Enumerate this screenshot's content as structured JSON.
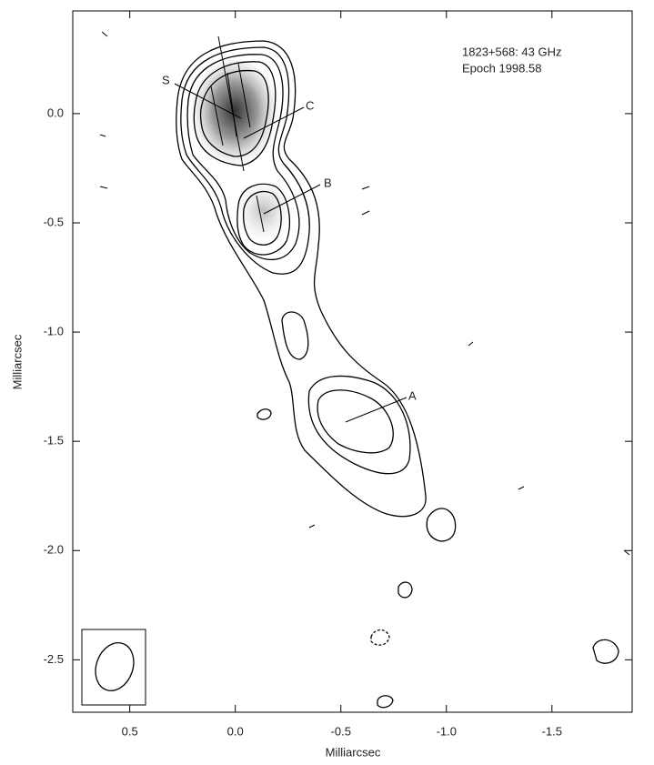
{
  "chart_data": {
    "type": "contour",
    "annotations": [
      "1823+568: 43 GHz",
      "Epoch 1998.58"
    ],
    "component_labels": [
      "S",
      "C",
      "B",
      "A"
    ],
    "x_label": "Milliarcsec",
    "y_label": "Milliarcsec",
    "xlim": [
      0.77,
      -1.88
    ],
    "xticks": [
      0.5,
      {
        "value": 0,
        "label": "0.0"
      },
      -0.5,
      {
        "value": -1,
        "label": "-1.0"
      },
      -1.5
    ],
    "ylim": [
      0.47,
      -2.74
    ],
    "yticks": [
      {
        "value": 0,
        "label": "0.0"
      },
      -0.5,
      {
        "value": -1,
        "label": "-1.0"
      },
      -1.5,
      {
        "value": -2,
        "label": "-2.0"
      },
      -2.5
    ],
    "color": "#000000"
  }
}
